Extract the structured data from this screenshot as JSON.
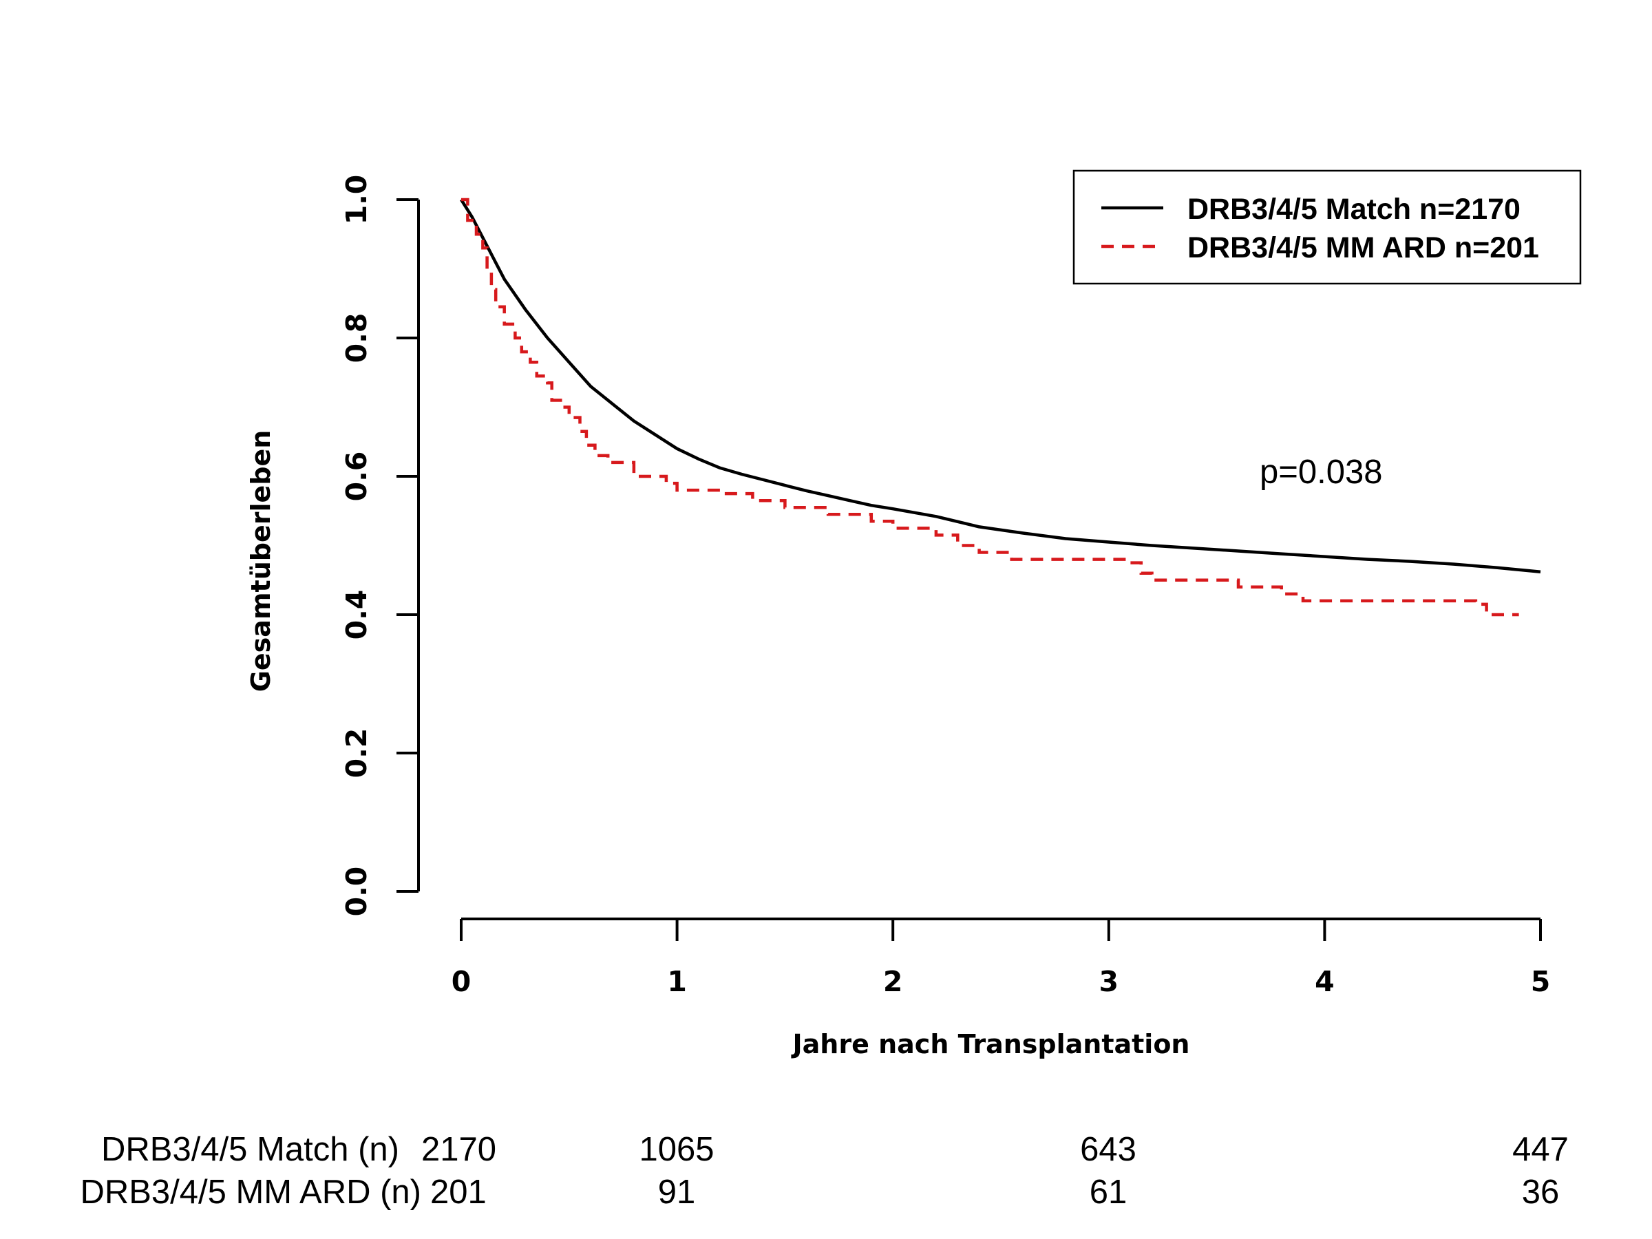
{
  "chart_data": {
    "type": "line",
    "xlabel": "Jahre nach Transplantation",
    "ylabel": "Gesamtüberleben",
    "xlim": [
      0,
      5
    ],
    "ylim": [
      0,
      1
    ],
    "x_ticks": [
      "0",
      "1",
      "2",
      "3",
      "4",
      "5"
    ],
    "y_ticks": [
      "0.0",
      "0.2",
      "0.4",
      "0.6",
      "0.8",
      "1.0"
    ],
    "grid": false,
    "legend_position": "top-right",
    "annotation": "p=0.038",
    "series": [
      {
        "name": "DRB3/4/5 Match n=2170",
        "color": "#000000",
        "style": "solid",
        "x": [
          0,
          0.05,
          0.1,
          0.15,
          0.2,
          0.3,
          0.4,
          0.5,
          0.6,
          0.7,
          0.8,
          0.9,
          1.0,
          1.1,
          1.2,
          1.3,
          1.4,
          1.5,
          1.6,
          1.7,
          1.8,
          1.9,
          2.0,
          2.2,
          2.4,
          2.6,
          2.8,
          3.0,
          3.2,
          3.4,
          3.6,
          3.8,
          4.0,
          4.2,
          4.4,
          4.6,
          4.8,
          5.0
        ],
        "y": [
          1.0,
          0.975,
          0.945,
          0.915,
          0.885,
          0.84,
          0.8,
          0.765,
          0.73,
          0.705,
          0.68,
          0.66,
          0.64,
          0.625,
          0.612,
          0.603,
          0.595,
          0.587,
          0.579,
          0.572,
          0.565,
          0.558,
          0.553,
          0.542,
          0.527,
          0.518,
          0.51,
          0.505,
          0.5,
          0.496,
          0.492,
          0.488,
          0.484,
          0.48,
          0.477,
          0.473,
          0.468,
          0.462
        ]
      },
      {
        "name": "DRB3/4/5 MM ARD n=201",
        "color": "#d7191c",
        "style": "dashed",
        "steps": [
          [
            0,
            1.0
          ],
          [
            0.03,
            0.97
          ],
          [
            0.07,
            0.95
          ],
          [
            0.1,
            0.93
          ],
          [
            0.12,
            0.9
          ],
          [
            0.14,
            0.87
          ],
          [
            0.16,
            0.845
          ],
          [
            0.2,
            0.82
          ],
          [
            0.25,
            0.8
          ],
          [
            0.28,
            0.78
          ],
          [
            0.32,
            0.765
          ],
          [
            0.35,
            0.745
          ],
          [
            0.4,
            0.735
          ],
          [
            0.42,
            0.71
          ],
          [
            0.46,
            0.7
          ],
          [
            0.5,
            0.685
          ],
          [
            0.55,
            0.665
          ],
          [
            0.58,
            0.645
          ],
          [
            0.62,
            0.63
          ],
          [
            0.68,
            0.62
          ],
          [
            0.8,
            0.6
          ],
          [
            0.95,
            0.59
          ],
          [
            1.0,
            0.58
          ],
          [
            1.2,
            0.575
          ],
          [
            1.35,
            0.565
          ],
          [
            1.5,
            0.555
          ],
          [
            1.7,
            0.545
          ],
          [
            1.9,
            0.535
          ],
          [
            2.0,
            0.525
          ],
          [
            2.2,
            0.515
          ],
          [
            2.3,
            0.5
          ],
          [
            2.4,
            0.49
          ],
          [
            2.55,
            0.48
          ],
          [
            3.1,
            0.475
          ],
          [
            3.15,
            0.46
          ],
          [
            3.2,
            0.45
          ],
          [
            3.6,
            0.44
          ],
          [
            3.8,
            0.43
          ],
          [
            3.9,
            0.42
          ],
          [
            4.7,
            0.415
          ],
          [
            4.75,
            0.4
          ],
          [
            4.9,
            0.4
          ]
        ]
      }
    ],
    "risk_table": {
      "rows": [
        {
          "label": "DRB3/4/5 Match (n)",
          "values": [
            "2170",
            "1065",
            "643",
            "447"
          ]
        },
        {
          "label": "DRB3/4/5 MM ARD (n)",
          "values": [
            "201",
            "91",
            "61",
            "36"
          ]
        }
      ],
      "at_years": [
        0,
        1,
        3,
        5
      ]
    }
  }
}
